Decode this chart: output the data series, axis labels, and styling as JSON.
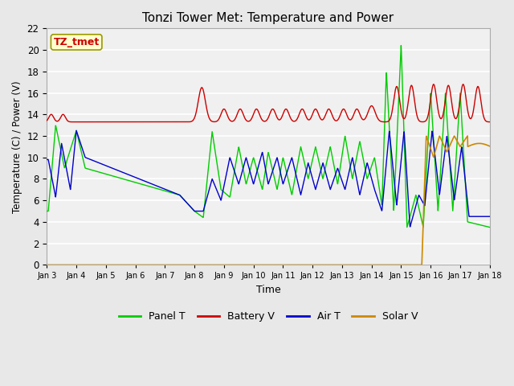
{
  "title": "Tonzi Tower Met: Temperature and Power",
  "xlabel": "Time",
  "ylabel": "Temperature (C) / Power (V)",
  "ylim": [
    0,
    22
  ],
  "yticks": [
    0,
    2,
    4,
    6,
    8,
    10,
    12,
    14,
    16,
    18,
    20,
    22
  ],
  "tz_label": "TZ_tmet",
  "tz_label_color": "#cc0000",
  "tz_box_color": "#ffffcc",
  "tz_box_edge": "#999900",
  "fig_facecolor": "#e8e8e8",
  "plot_facecolor": "#f0f0f0",
  "grid_color": "white",
  "legend_labels": [
    "Panel T",
    "Battery V",
    "Air T",
    "Solar V"
  ],
  "legend_colors": [
    "#00cc00",
    "#cc0000",
    "#0000cc",
    "#cc8800"
  ],
  "line_colors": {
    "panel_t": "#00cc00",
    "battery_v": "#cc0000",
    "air_t": "#0000cc",
    "solar_v": "#cc8800"
  },
  "x_tick_labels": [
    "Jan 3",
    "Jan 4",
    "Jan 5",
    "Jan 6",
    "Jan 7",
    "Jan 8",
    "Jan 9",
    "Jan 10",
    "Jan 11",
    "Jan 12",
    "Jan 13",
    "Jan 14",
    "Jan 15",
    "Jan 16",
    "Jan 17",
    "Jan 18"
  ],
  "x_tick_positions": [
    0,
    1,
    2,
    3,
    4,
    5,
    6,
    7,
    8,
    9,
    10,
    11,
    12,
    13,
    14,
    15
  ]
}
